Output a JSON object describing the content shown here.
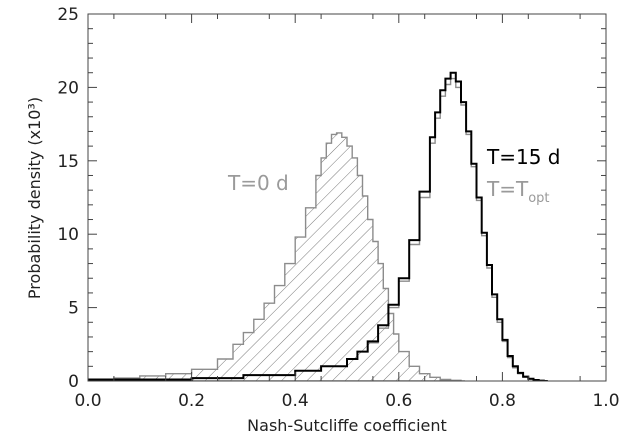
{
  "chart_data": {
    "type": "histogram",
    "xlabel": "Nash-Sutcliffe coefficient",
    "ylabel": "Probability density (x10³)",
    "xlim": [
      0.0,
      1.0
    ],
    "ylim": [
      0,
      25
    ],
    "xticks": [
      "0.0",
      "0.2",
      "0.4",
      "0.6",
      "0.8",
      "1.0"
    ],
    "yticks": [
      "0",
      "5",
      "10",
      "15",
      "20",
      "25"
    ],
    "grid": false,
    "series": [
      {
        "name": "T=0 d",
        "style": "hatched",
        "color": "#8c8c8c",
        "x": [
          0.0,
          0.05,
          0.1,
          0.15,
          0.2,
          0.25,
          0.28,
          0.3,
          0.32,
          0.34,
          0.36,
          0.38,
          0.4,
          0.42,
          0.44,
          0.45,
          0.46,
          0.47,
          0.48,
          0.49,
          0.5,
          0.51,
          0.52,
          0.53,
          0.54,
          0.55,
          0.56,
          0.57,
          0.58,
          0.59,
          0.6,
          0.62,
          0.64,
          0.66,
          0.68,
          0.7,
          0.72
        ],
        "y": [
          0.1,
          0.2,
          0.35,
          0.5,
          0.8,
          1.5,
          2.5,
          3.3,
          4.2,
          5.3,
          6.5,
          8.0,
          9.8,
          11.8,
          14.0,
          15.2,
          16.2,
          16.8,
          16.9,
          16.6,
          16.0,
          15.2,
          14.0,
          12.6,
          11.0,
          9.5,
          8.0,
          6.3,
          4.6,
          3.2,
          2.0,
          1.0,
          0.5,
          0.25,
          0.1,
          0.05,
          0.0
        ]
      },
      {
        "name": "T=15 d",
        "style": "line",
        "color": "#000000",
        "x": [
          0.0,
          0.2,
          0.3,
          0.4,
          0.45,
          0.5,
          0.52,
          0.54,
          0.56,
          0.58,
          0.6,
          0.62,
          0.64,
          0.66,
          0.67,
          0.68,
          0.69,
          0.7,
          0.71,
          0.72,
          0.73,
          0.74,
          0.75,
          0.76,
          0.77,
          0.78,
          0.79,
          0.8,
          0.81,
          0.82,
          0.83,
          0.84,
          0.85,
          0.86,
          0.87,
          0.88
        ],
        "y": [
          0.1,
          0.2,
          0.4,
          0.7,
          1.0,
          1.5,
          2.0,
          2.7,
          3.8,
          5.2,
          7.0,
          9.6,
          12.9,
          16.6,
          18.3,
          19.8,
          20.6,
          21.0,
          20.4,
          19.0,
          17.0,
          14.8,
          12.5,
          10.1,
          7.9,
          5.9,
          4.2,
          2.8,
          1.7,
          1.0,
          0.55,
          0.3,
          0.15,
          0.07,
          0.03,
          0.0
        ]
      },
      {
        "name": "T=Topt",
        "style": "line",
        "color": "#8c8c8c",
        "x": [
          0.0,
          0.2,
          0.3,
          0.4,
          0.45,
          0.5,
          0.52,
          0.54,
          0.56,
          0.58,
          0.6,
          0.62,
          0.64,
          0.66,
          0.67,
          0.68,
          0.69,
          0.7,
          0.71,
          0.72,
          0.73,
          0.74,
          0.75,
          0.76,
          0.77,
          0.78,
          0.79,
          0.8,
          0.81,
          0.82,
          0.83,
          0.84,
          0.85,
          0.86,
          0.87,
          0.88
        ],
        "y": [
          0.1,
          0.2,
          0.4,
          0.7,
          1.0,
          1.5,
          2.0,
          2.6,
          3.6,
          5.0,
          6.8,
          9.3,
          12.5,
          16.2,
          17.9,
          19.4,
          20.2,
          20.6,
          20.0,
          18.8,
          16.8,
          14.6,
          12.3,
          9.9,
          7.7,
          5.7,
          4.0,
          2.7,
          1.6,
          0.9,
          0.5,
          0.25,
          0.12,
          0.05,
          0.02,
          0.0
        ]
      }
    ],
    "annotations": {
      "t0": "T=0  d",
      "t15": "T=15  d",
      "topt_main": "T=T",
      "topt_sub": "opt"
    }
  }
}
